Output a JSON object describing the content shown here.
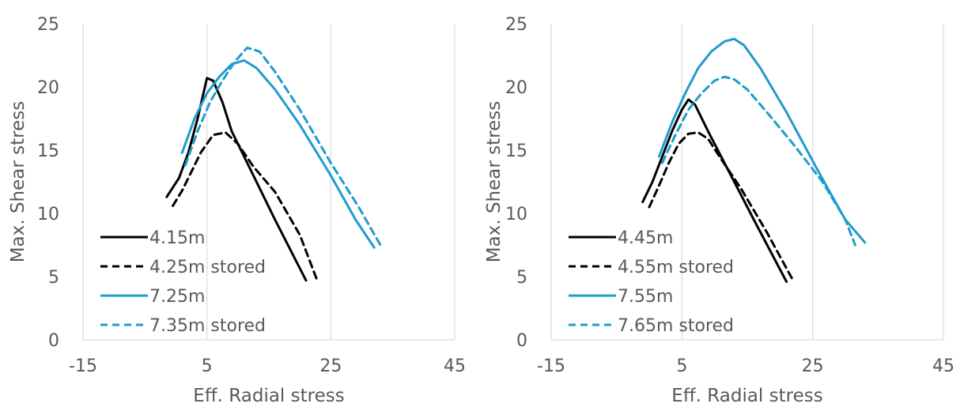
{
  "colors": {
    "black": "#000000",
    "blue": "#1f9ccc",
    "grid": "#d9d9d9",
    "text": "#595959"
  },
  "chart_data": [
    {
      "type": "line",
      "xlabel": "Eff. Radial stress",
      "ylabel": "Max. Shear stress",
      "xlim": [
        -15,
        45
      ],
      "ylim": [
        0,
        25
      ],
      "xticks": [
        "-15",
        "5",
        "25",
        "45"
      ],
      "yticks": [
        "0",
        "5",
        "10",
        "15",
        "20",
        "25"
      ],
      "grid": "vertical",
      "legend_position": "bottom-left inside",
      "series": [
        {
          "name": "4.15m",
          "color": "#000000",
          "dash": false,
          "x": [
            -1.5,
            0.5,
            2.0,
            3.5,
            5.0,
            6.0,
            7.5,
            9.0,
            12.0,
            16.0,
            21.0
          ],
          "y": [
            11.3,
            12.8,
            14.8,
            17.5,
            20.7,
            20.5,
            18.8,
            16.5,
            13.5,
            9.5,
            4.7
          ]
        },
        {
          "name": "4.25m stored",
          "color": "#000000",
          "dash": true,
          "x": [
            -0.5,
            1.0,
            2.5,
            4.0,
            6.0,
            8.0,
            10.0,
            12.5,
            16.0,
            20.0,
            22.8
          ],
          "y": [
            10.6,
            11.8,
            13.3,
            14.8,
            16.2,
            16.4,
            15.5,
            13.7,
            11.7,
            8.3,
            4.7
          ]
        },
        {
          "name": "7.25m",
          "color": "#1f9ccc",
          "dash": false,
          "x": [
            1.0,
            3.0,
            5.0,
            7.0,
            9.0,
            11.0,
            13.0,
            16.0,
            20.0,
            25.0,
            29.0,
            32.0
          ],
          "y": [
            14.8,
            17.5,
            19.5,
            20.8,
            21.8,
            22.1,
            21.5,
            19.8,
            17.0,
            13.0,
            9.5,
            7.3
          ]
        },
        {
          "name": "7.35m stored",
          "color": "#1f9ccc",
          "dash": true,
          "x": [
            1.5,
            3.5,
            5.5,
            7.5,
            9.5,
            11.5,
            13.5,
            16.0,
            20.0,
            25.0,
            29.5,
            33.0
          ],
          "y": [
            13.8,
            16.5,
            18.8,
            20.5,
            22.0,
            23.1,
            22.8,
            21.2,
            18.2,
            14.0,
            10.5,
            7.5
          ]
        }
      ]
    },
    {
      "type": "line",
      "xlabel": "Eff. Radial stress",
      "ylabel": "Max. Shear stress",
      "xlim": [
        -15,
        45
      ],
      "ylim": [
        0,
        25
      ],
      "xticks": [
        "-15",
        "5",
        "25",
        "45"
      ],
      "yticks": [
        "0",
        "5",
        "10",
        "15",
        "20",
        "25"
      ],
      "grid": "vertical",
      "legend_position": "bottom-left inside",
      "series": [
        {
          "name": "4.45m",
          "color": "#000000",
          "dash": false,
          "x": [
            -1.0,
            0.5,
            2.0,
            3.5,
            5.0,
            6.0,
            7.0,
            9.0,
            12.0,
            16.0,
            21.0
          ],
          "y": [
            10.9,
            12.5,
            14.5,
            16.5,
            18.2,
            19.0,
            18.6,
            16.5,
            13.5,
            9.5,
            4.6
          ]
        },
        {
          "name": "4.55m stored",
          "color": "#000000",
          "dash": true,
          "x": [
            0.0,
            1.5,
            3.0,
            4.5,
            6.0,
            7.5,
            9.0,
            11.0,
            14.0,
            18.0,
            22.0
          ],
          "y": [
            10.5,
            12.2,
            14.0,
            15.5,
            16.3,
            16.4,
            15.9,
            14.3,
            12.0,
            8.5,
            4.7
          ]
        },
        {
          "name": "7.55m",
          "color": "#1f9ccc",
          "dash": false,
          "x": [
            1.5,
            3.5,
            5.5,
            7.5,
            9.5,
            11.5,
            13.0,
            14.5,
            17.0,
            21.0,
            26.0,
            30.0,
            33.0
          ],
          "y": [
            14.5,
            17.2,
            19.5,
            21.5,
            22.8,
            23.6,
            23.8,
            23.3,
            21.5,
            18.0,
            13.2,
            9.5,
            7.7
          ]
        },
        {
          "name": "7.65m stored",
          "color": "#1f9ccc",
          "dash": true,
          "x": [
            2.0,
            4.0,
            6.0,
            8.0,
            10.0,
            11.5,
            13.0,
            15.0,
            18.0,
            22.0,
            26.5,
            30.0,
            31.5
          ],
          "y": [
            14.0,
            16.2,
            18.2,
            19.5,
            20.5,
            20.8,
            20.6,
            19.8,
            18.0,
            15.5,
            12.5,
            9.5,
            7.5
          ]
        }
      ]
    }
  ]
}
